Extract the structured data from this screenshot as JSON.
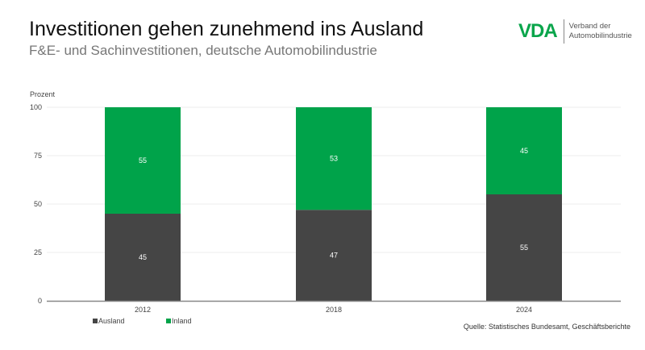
{
  "header": {
    "title": "Investitionen gehen zunehmend ins Ausland",
    "subtitle": "F&E- und Sachinvestitionen, deutsche Automobilindustrie"
  },
  "logo": {
    "mark": "VDA",
    "line1": "Verband der",
    "line2": "Automobilindustrie",
    "color": "#0aa54b"
  },
  "chart_data": {
    "type": "bar",
    "stacked": true,
    "ylabel": "Prozent",
    "ylim": [
      0,
      100
    ],
    "yticks": [
      0,
      25,
      50,
      75,
      100
    ],
    "grid": true,
    "categories": [
      "2012",
      "2018",
      "2024"
    ],
    "series": [
      {
        "name": "Ausland",
        "values": [
          45,
          47,
          55
        ],
        "color": "#454545"
      },
      {
        "name": "Inland",
        "values": [
          55,
          53,
          45
        ],
        "color": "#00a34a"
      }
    ],
    "legend": "bottom-left"
  },
  "source": "Quelle: Statistisches Bundesamt, Geschäftsberichte"
}
